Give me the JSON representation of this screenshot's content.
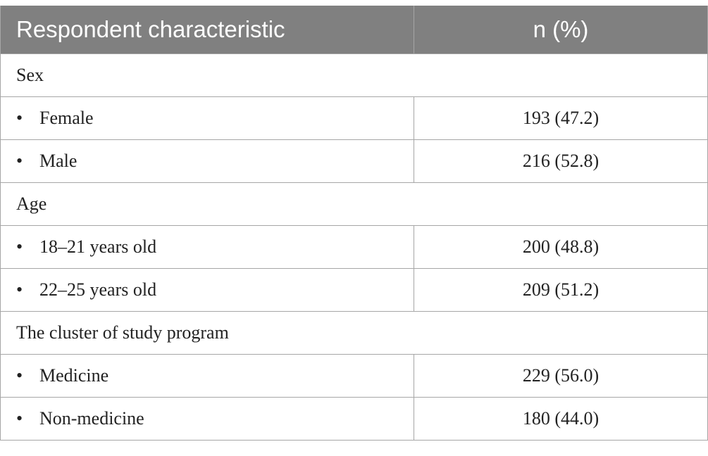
{
  "header": {
    "col1": "Respondent characteristic",
    "col2": "n (%)"
  },
  "bullet": "•",
  "sections": [
    {
      "title": "Sex",
      "rows": [
        {
          "label": "Female",
          "value": "193 (47.2)"
        },
        {
          "label": "Male",
          "value": "216 (52.8)"
        }
      ]
    },
    {
      "title": "Age",
      "rows": [
        {
          "label": "18–21 years old",
          "value": "200 (48.8)"
        },
        {
          "label": "22–25 years old",
          "value": "209 (51.2)"
        }
      ]
    },
    {
      "title": "The cluster of study program",
      "rows": [
        {
          "label": "Medicine",
          "value": "229 (56.0)"
        },
        {
          "label": "Non-medicine",
          "value": "180 (44.0)"
        }
      ]
    }
  ]
}
